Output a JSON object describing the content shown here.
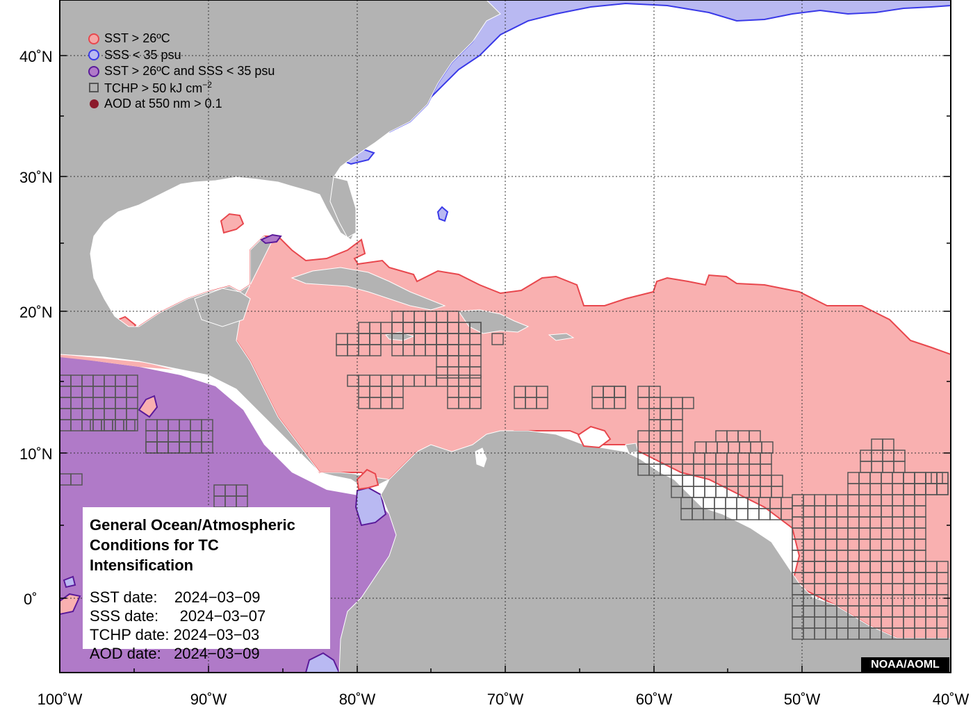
{
  "legend": [
    {
      "symbol": "circle",
      "fill": "#f4a6a6",
      "stroke": "#e8474d",
      "label": "SST > 26ºC"
    },
    {
      "symbol": "circle",
      "fill": "#b9b9f2",
      "stroke": "#3939e8",
      "label": "SSS < 35 psu"
    },
    {
      "symbol": "circle",
      "fill": "#b07ac8",
      "stroke": "#5a1a9a",
      "label": "SST > 26ºC and SSS < 35 psu"
    },
    {
      "symbol": "square",
      "fill": "none",
      "stroke": "#555555",
      "label": "TCHP > 50 kJ cm",
      "label_sup": "−2"
    },
    {
      "symbol": "dot",
      "fill": "#8b1a2b",
      "stroke": "#8b1a2b",
      "label": "AOD at 550 nm > 0.1"
    }
  ],
  "axes": {
    "x_ticks": [
      "100˚W",
      "90˚W",
      "80˚W",
      "70˚W",
      "60˚W",
      "50˚W",
      "40˚W"
    ],
    "y_ticks": [
      "40˚N",
      "30˚N",
      "20˚N",
      "10˚N",
      "0˚"
    ]
  },
  "info": {
    "title_line1": "General Ocean/Atmospheric",
    "title_line2": "Conditions for TC Intensification",
    "rows": [
      {
        "key": "SST date:    ",
        "value": "2024−03−09"
      },
      {
        "key": "SSS date:     ",
        "value": "2024−03−07"
      },
      {
        "key": "TCHP date: ",
        "value": "2024−03−03"
      },
      {
        "key": "AOD date:   ",
        "value": "2024−03−09"
      }
    ]
  },
  "credit": "NOAA/AOML",
  "colors": {
    "land": "#b3b3b3",
    "ocean": "#ffffff",
    "sst_fill": "#f9b0b0",
    "sst_line": "#e8474d",
    "sss_fill": "#b9b9f2",
    "sss_line": "#3939e8",
    "both_fill": "#b07ac8",
    "both_line": "#5a1a9a",
    "tchp_line": "#555555"
  }
}
